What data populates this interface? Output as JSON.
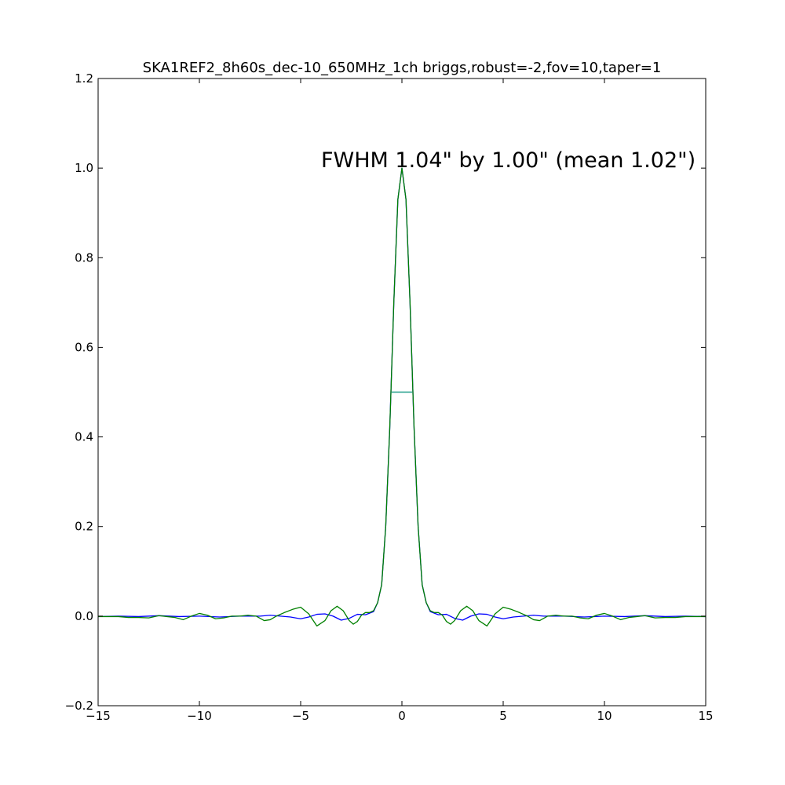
{
  "chart_data": {
    "type": "line",
    "title": "SKA1REF2_8h60s_dec-10_650MHz_1ch briggs,robust=-2,fov=10,taper=1",
    "xlabel": "",
    "ylabel": "",
    "xlim": [
      -15,
      15
    ],
    "ylim": [
      -0.2,
      1.2
    ],
    "x_ticks": [
      -15,
      -10,
      -5,
      0,
      5,
      10,
      15
    ],
    "x_tick_labels": [
      "−15",
      "−10",
      "−5",
      "0",
      "5",
      "10",
      "15"
    ],
    "y_ticks": [
      -0.2,
      0.0,
      0.2,
      0.4,
      0.6,
      0.8,
      1.0,
      1.2
    ],
    "y_tick_labels": [
      "−0.2",
      "0.0",
      "0.2",
      "0.4",
      "0.6",
      "0.8",
      "1.0",
      "1.2"
    ],
    "grid": false,
    "annotation": "FWHM 1.04\" by 1.00\" (mean 1.02\")",
    "series": [
      {
        "color": "#0000ff",
        "x": [
          -15,
          -14,
          -13,
          -12,
          -11,
          -10,
          -9,
          -8,
          -7,
          -6.5,
          -6,
          -5.5,
          -5,
          -4.6,
          -4.2,
          -3.8,
          -3.4,
          -3.0,
          -2.6,
          -2.2,
          -1.8,
          -1.4,
          -1.2,
          -1.0,
          -0.8,
          -0.6,
          -0.4,
          -0.2,
          0,
          0.2,
          0.4,
          0.6,
          0.8,
          1.0,
          1.2,
          1.4,
          1.8,
          2.2,
          2.6,
          3.0,
          3.4,
          3.8,
          4.2,
          4.6,
          5.0,
          5.5,
          6.0,
          6.5,
          7.0,
          8.0,
          9.0,
          10.0,
          11.0,
          12.0,
          13.0,
          14.0,
          15.0
        ],
        "y": [
          -0.001,
          0.0,
          -0.001,
          0.001,
          -0.001,
          0.0,
          -0.002,
          0.0,
          0.0,
          0.002,
          0.0,
          -0.002,
          -0.006,
          -0.002,
          0.004,
          0.005,
          0.0,
          -0.009,
          -0.005,
          0.004,
          0.003,
          0.01,
          0.03,
          0.07,
          0.2,
          0.42,
          0.7,
          0.93,
          1.0,
          0.93,
          0.7,
          0.42,
          0.2,
          0.07,
          0.03,
          0.01,
          0.003,
          0.004,
          -0.005,
          -0.009,
          0.0,
          0.005,
          0.004,
          -0.002,
          -0.006,
          -0.002,
          0.0,
          0.002,
          0.0,
          0.0,
          -0.002,
          0.0,
          -0.001,
          0.001,
          -0.001,
          0.0,
          -0.001
        ]
      },
      {
        "color": "#008000",
        "x": [
          -15,
          -14,
          -13.5,
          -13,
          -12.5,
          -12,
          -11.6,
          -11.2,
          -10.8,
          -10.4,
          -10.0,
          -9.6,
          -9.2,
          -8.8,
          -8.4,
          -8.0,
          -7.6,
          -7.2,
          -6.8,
          -6.5,
          -6.2,
          -5.8,
          -5.4,
          -5.0,
          -4.6,
          -4.2,
          -3.8,
          -3.5,
          -3.2,
          -2.9,
          -2.6,
          -2.4,
          -2.2,
          -2.0,
          -1.8,
          -1.6,
          -1.4,
          -1.2,
          -1.0,
          -0.8,
          -0.6,
          -0.4,
          -0.2,
          0,
          0.2,
          0.4,
          0.6,
          0.8,
          1.0,
          1.2,
          1.4,
          1.6,
          1.8,
          2.0,
          2.2,
          2.4,
          2.6,
          2.9,
          3.2,
          3.5,
          3.8,
          4.2,
          4.6,
          5.0,
          5.4,
          5.8,
          6.2,
          6.5,
          6.8,
          7.2,
          7.6,
          8.0,
          8.4,
          8.8,
          9.2,
          9.6,
          10.0,
          10.4,
          10.8,
          11.2,
          11.6,
          12.0,
          12.5,
          13.0,
          13.5,
          14.0,
          15.0
        ],
        "y": [
          -0.001,
          -0.001,
          -0.003,
          -0.003,
          -0.004,
          0.001,
          -0.001,
          -0.003,
          -0.008,
          0.0,
          0.006,
          0.002,
          -0.006,
          -0.004,
          0.0,
          0.0,
          0.002,
          0.0,
          -0.01,
          -0.008,
          0.0,
          0.008,
          0.015,
          0.02,
          0.005,
          -0.022,
          -0.01,
          0.012,
          0.022,
          0.012,
          -0.01,
          -0.018,
          -0.012,
          0.002,
          0.008,
          0.008,
          0.012,
          0.03,
          0.07,
          0.2,
          0.42,
          0.7,
          0.93,
          1.0,
          0.93,
          0.7,
          0.42,
          0.2,
          0.07,
          0.03,
          0.012,
          0.008,
          0.008,
          0.002,
          -0.012,
          -0.018,
          -0.01,
          0.012,
          0.022,
          0.012,
          -0.01,
          -0.022,
          0.005,
          0.02,
          0.015,
          0.008,
          0.0,
          -0.008,
          -0.01,
          0.0,
          0.002,
          0.0,
          0.0,
          -0.004,
          -0.006,
          0.002,
          0.006,
          0.0,
          -0.008,
          -0.003,
          -0.001,
          0.001,
          -0.004,
          -0.003,
          -0.003,
          -0.001,
          -0.001
        ]
      }
    ],
    "fwhm_marker": {
      "color": "#1f9e89",
      "x": [
        -0.51,
        0.51
      ],
      "y": 0.5
    }
  }
}
